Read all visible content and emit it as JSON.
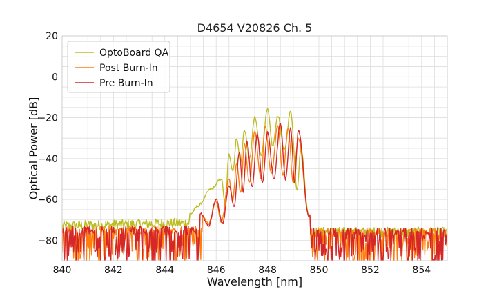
{
  "chart_data": {
    "type": "line",
    "title": "D4654 V20826 Ch. 5",
    "xlabel": "Wavelength [nm]",
    "ylabel": "Optical Power [dB]",
    "xlim": [
      840,
      855
    ],
    "ylim": [
      -90,
      20
    ],
    "xticks": [
      "840",
      "842",
      "844",
      "846",
      "848",
      "850",
      "852",
      "854"
    ],
    "yticks": [
      "20",
      "0",
      "−20",
      "−40",
      "−60",
      "−80"
    ],
    "grid": true,
    "legend_position": "top-left",
    "noise_floor": {
      "x_start": 840,
      "x_end": 855,
      "upper_level": -71,
      "lower_level": -90
    },
    "series": [
      {
        "name": "OptoBoard QA",
        "color": "#bcbd22",
        "peaks": [
          {
            "x": 845.0,
            "y": -67
          },
          {
            "x": 845.3,
            "y": -63
          },
          {
            "x": 845.8,
            "y": -55
          },
          {
            "x": 846.2,
            "y": -50
          },
          {
            "x": 846.5,
            "y": -38
          },
          {
            "x": 846.8,
            "y": -30
          },
          {
            "x": 847.1,
            "y": -26
          },
          {
            "x": 847.5,
            "y": -20
          },
          {
            "x": 848.0,
            "y": -16
          },
          {
            "x": 848.4,
            "y": -19
          },
          {
            "x": 848.9,
            "y": -17
          },
          {
            "x": 849.3,
            "y": -35
          },
          {
            "x": 849.6,
            "y": -68
          }
        ],
        "troughs": [
          {
            "x": 846.35,
            "y": -62
          },
          {
            "x": 846.65,
            "y": -46
          },
          {
            "x": 846.95,
            "y": -42
          },
          {
            "x": 847.3,
            "y": -40
          },
          {
            "x": 847.75,
            "y": -38
          },
          {
            "x": 848.2,
            "y": -34
          },
          {
            "x": 848.65,
            "y": -36
          },
          {
            "x": 849.15,
            "y": -55
          }
        ]
      },
      {
        "name": "Post Burn-In",
        "color": "#ff7f0e",
        "peaks": [
          {
            "x": 845.5,
            "y": -68
          },
          {
            "x": 846.0,
            "y": -61
          },
          {
            "x": 846.5,
            "y": -50
          },
          {
            "x": 846.8,
            "y": -42
          },
          {
            "x": 847.1,
            "y": -33
          },
          {
            "x": 847.5,
            "y": -27
          },
          {
            "x": 847.9,
            "y": -24
          },
          {
            "x": 848.4,
            "y": -24
          },
          {
            "x": 848.8,
            "y": -25
          },
          {
            "x": 849.2,
            "y": -30
          },
          {
            "x": 849.6,
            "y": -68
          }
        ],
        "troughs": [
          {
            "x": 845.7,
            "y": -72
          },
          {
            "x": 846.2,
            "y": -71
          },
          {
            "x": 846.65,
            "y": -60
          },
          {
            "x": 846.95,
            "y": -57
          },
          {
            "x": 847.3,
            "y": -52
          },
          {
            "x": 847.75,
            "y": -50
          },
          {
            "x": 848.15,
            "y": -47
          },
          {
            "x": 848.6,
            "y": -48
          },
          {
            "x": 849.0,
            "y": -52
          }
        ]
      },
      {
        "name": "Pre Burn-In",
        "color": "#d62728",
        "peaks": [
          {
            "x": 845.4,
            "y": -67
          },
          {
            "x": 846.0,
            "y": -60
          },
          {
            "x": 846.5,
            "y": -53
          },
          {
            "x": 846.9,
            "y": -37
          },
          {
            "x": 847.2,
            "y": -32
          },
          {
            "x": 847.6,
            "y": -28
          },
          {
            "x": 848.0,
            "y": -27
          },
          {
            "x": 848.5,
            "y": -23
          },
          {
            "x": 848.9,
            "y": -25
          },
          {
            "x": 849.2,
            "y": -26
          },
          {
            "x": 849.6,
            "y": -68
          }
        ],
        "troughs": [
          {
            "x": 845.7,
            "y": -73
          },
          {
            "x": 846.25,
            "y": -72
          },
          {
            "x": 846.7,
            "y": -64
          },
          {
            "x": 847.05,
            "y": -56
          },
          {
            "x": 847.4,
            "y": -54
          },
          {
            "x": 847.8,
            "y": -52
          },
          {
            "x": 848.25,
            "y": -50
          },
          {
            "x": 848.7,
            "y": -50
          },
          {
            "x": 849.05,
            "y": -52
          }
        ]
      }
    ]
  }
}
